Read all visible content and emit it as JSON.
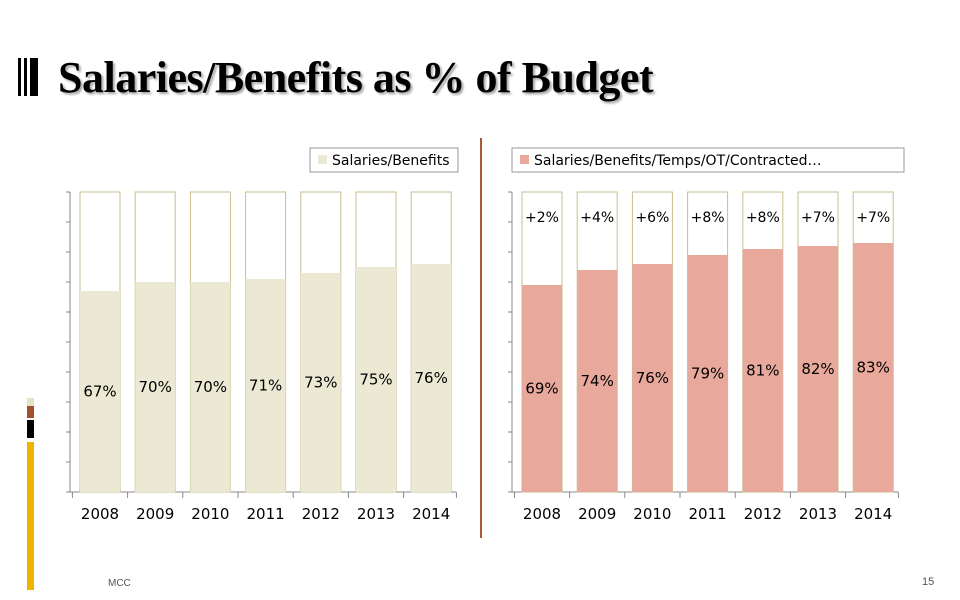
{
  "title": "Salaries/Benefits as % of Budget",
  "footer": {
    "left": "MCC",
    "page_number": "15"
  },
  "colors": {
    "left_fill": "#ebe9d3",
    "right_fill": "#e8a99c",
    "frame": "#c9be8f",
    "divider": "#a85a3a"
  },
  "chart_data": [
    {
      "type": "bar",
      "stacked_to_100": true,
      "categories": [
        "2008",
        "2009",
        "2010",
        "2011",
        "2012",
        "2013",
        "2014"
      ],
      "series": [
        {
          "name": "Salaries/Benefits",
          "values": [
            67,
            70,
            70,
            71,
            73,
            75,
            76
          ]
        }
      ],
      "data_labels": [
        "67%",
        "70%",
        "70%",
        "71%",
        "73%",
        "75%",
        "76%"
      ],
      "ylim": [
        0,
        100
      ],
      "legend": "top-right"
    },
    {
      "type": "bar",
      "stacked_to_100": true,
      "categories": [
        "2008",
        "2009",
        "2010",
        "2011",
        "2012",
        "2013",
        "2014"
      ],
      "series": [
        {
          "name": "Salaries/Benefits/Temps/OT/Contracted…",
          "values": [
            69,
            74,
            76,
            79,
            81,
            82,
            83
          ]
        }
      ],
      "data_labels": [
        "69%",
        "74%",
        "76%",
        "79%",
        "81%",
        "82%",
        "83%"
      ],
      "annotations": [
        "+2%",
        "+4%",
        "+6%",
        "+8%",
        "+8%",
        "+7%",
        "+7%"
      ],
      "ylim": [
        0,
        100
      ],
      "legend": "top-right"
    }
  ]
}
